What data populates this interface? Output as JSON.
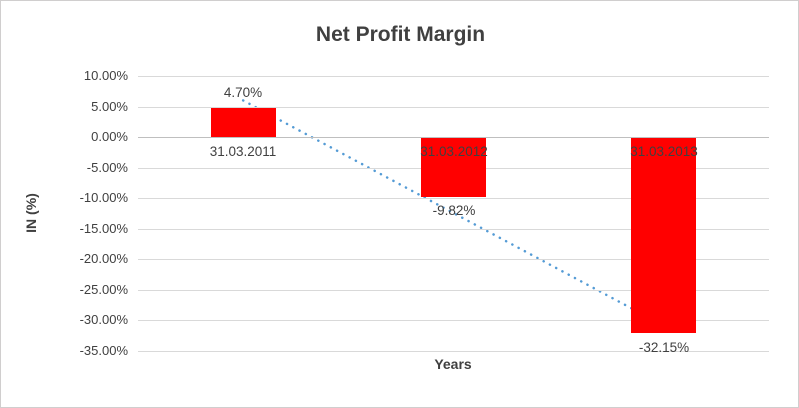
{
  "chart_data": {
    "type": "bar",
    "title": "Net Profit Margin",
    "xlabel": "Years",
    "ylabel": "IN (%)",
    "categories": [
      "31.03.2011",
      "31.03.2012",
      "31.03.2013"
    ],
    "values": [
      4.7,
      -9.82,
      -32.15
    ],
    "data_labels": [
      "4.70%",
      "-9.82%",
      "-32.15%"
    ],
    "y_tick_values": [
      10,
      5,
      0,
      -5,
      -10,
      -15,
      -20,
      -25,
      -30,
      -35
    ],
    "y_tick_labels": [
      "10.00%",
      "5.00%",
      "0.00%",
      "-5.00%",
      "-10.00%",
      "-15.00%",
      "-20.00%",
      "-25.00%",
      "-30.00%",
      "-35.00%"
    ],
    "ylim": [
      -35,
      10
    ],
    "grid": true,
    "legend": "none",
    "bar_color": "#ff0000",
    "text_color": "#404040",
    "gridline_color": "#d9d9d9",
    "zero_axis_color": "#bfbfbf",
    "trendline": {
      "type": "linear",
      "style": "dotted",
      "color": "#549bd5",
      "start_value": 6.0,
      "end_value": -30.85
    }
  }
}
